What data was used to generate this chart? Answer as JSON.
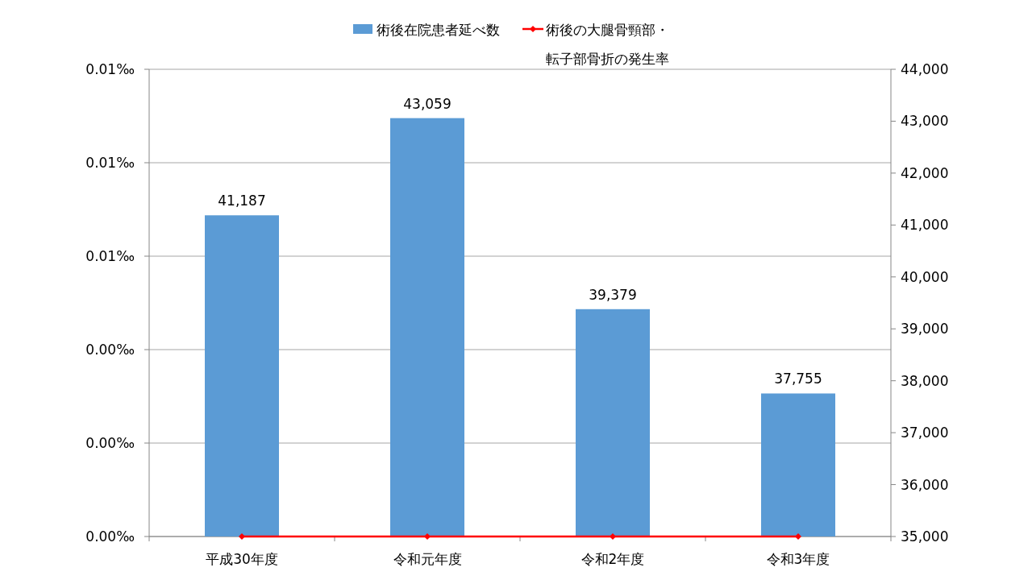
{
  "chart_data": {
    "type": "bar",
    "categories": [
      "平成30年度",
      "令和元年度",
      "令和2年度",
      "令和3年度"
    ],
    "series": [
      {
        "name": "術後在院患者延べ数",
        "color": "#5b9bd5",
        "values": [
          41187,
          43059,
          39379,
          37755
        ],
        "axis": "y2",
        "value_labels": [
          "41,187",
          "43,059",
          "39,379",
          "37,755"
        ]
      },
      {
        "name": "術後の大腿骨頸部・転子部骨折の発生率",
        "color": "#ff0000",
        "values": [
          0,
          0,
          0,
          0
        ],
        "type": "line",
        "axis": "y"
      }
    ],
    "ylim": [
      0,
      0.01
    ],
    "yticks": [
      {
        "value": 0,
        "label": "0.00‰"
      },
      {
        "value": 0.002,
        "label": "0.00‰"
      },
      {
        "value": 0.004,
        "label": "0.00‰"
      },
      {
        "value": 0.006,
        "label": "0.01‰"
      },
      {
        "value": 0.008,
        "label": "0.01‰"
      },
      {
        "value": 0.01,
        "label": "0.01‰"
      }
    ],
    "y2lim": [
      35000,
      44000
    ],
    "y2ticks": [
      {
        "value": 35000,
        "label": "35,000"
      },
      {
        "value": 36000,
        "label": "36,000"
      },
      {
        "value": 37000,
        "label": "37,000"
      },
      {
        "value": 38000,
        "label": "38,000"
      },
      {
        "value": 39000,
        "label": "39,000"
      },
      {
        "value": 40000,
        "label": "40,000"
      },
      {
        "value": 41000,
        "label": "41,000"
      },
      {
        "value": 42000,
        "label": "42,000"
      },
      {
        "value": 43000,
        "label": "43,000"
      },
      {
        "value": 44000,
        "label": "44,000"
      }
    ],
    "grid": "y",
    "legend": "top",
    "marker": "diamond",
    "line_style": "solid"
  }
}
